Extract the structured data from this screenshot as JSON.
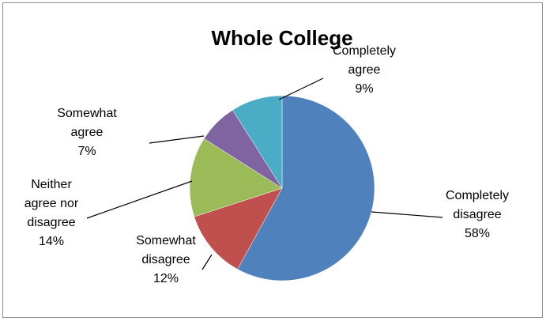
{
  "chart_data": {
    "type": "pie",
    "title": "Whole College",
    "start": "12 o'clock",
    "direction": "clockwise",
    "slices": [
      {
        "label": "Completely disagree",
        "label_lines": [
          "Completely",
          "disagree"
        ],
        "percent_label": "58%",
        "value": 58,
        "color": "#4f81bd"
      },
      {
        "label": "Somewhat disagree",
        "label_lines": [
          "Somewhat",
          "disagree"
        ],
        "percent_label": "12%",
        "value": 12,
        "color": "#c0504d"
      },
      {
        "label": "Neither agree nor disagree",
        "label_lines": [
          "Neither",
          "agree nor",
          "disagree"
        ],
        "percent_label": "14%",
        "value": 14,
        "color": "#9bbb59"
      },
      {
        "label": "Somewhat agree",
        "label_lines": [
          "Somewhat",
          "agree"
        ],
        "percent_label": "7%",
        "value": 7,
        "color": "#8064a2"
      },
      {
        "label": "Completely agree",
        "label_lines": [
          "Completely",
          "agree"
        ],
        "percent_label": "9%",
        "value": 9,
        "color": "#4bacc6"
      }
    ],
    "legend": "none"
  }
}
